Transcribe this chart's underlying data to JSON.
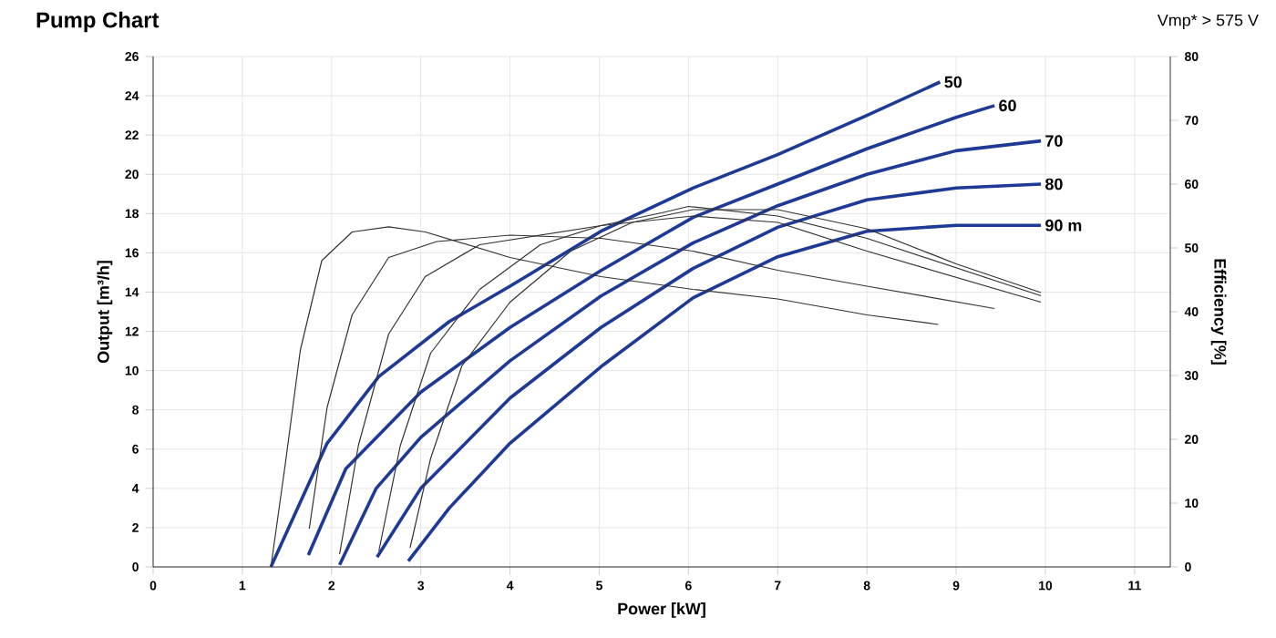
{
  "chart_data": {
    "type": "line",
    "title": "Pump Chart",
    "subtitle": "Vmp* > 575 V",
    "xlabel": "Power [kW]",
    "ylabel": "Output [m³/h]",
    "y2label": "Efficiency [%]",
    "xlim": [
      0,
      11.4
    ],
    "xticks": [
      0,
      1,
      2,
      3,
      4,
      5,
      6,
      7,
      8,
      9,
      10,
      11
    ],
    "ylim": [
      0,
      26
    ],
    "yticks": [
      0,
      2,
      4,
      6,
      8,
      10,
      12,
      14,
      16,
      18,
      20,
      22,
      24,
      26
    ],
    "y2lim": [
      0,
      80
    ],
    "y2ticks": [
      0,
      10,
      20,
      30,
      40,
      50,
      60,
      70,
      80
    ],
    "grid": true,
    "series": [
      {
        "name": "50",
        "color": "#1f3a96",
        "x": [
          1.32,
          1.95,
          2.53,
          3.32,
          4.0,
          5.02,
          6.05,
          7.0,
          8.0,
          8.82
        ],
        "values": [
          0,
          6.3,
          9.7,
          12.5,
          14.3,
          17.1,
          19.3,
          21.0,
          23.0,
          24.7
        ]
      },
      {
        "name": "60",
        "color": "#1f3a96",
        "x": [
          1.74,
          2.16,
          3.0,
          4.0,
          5.02,
          6.05,
          7.0,
          8.0,
          9.0,
          9.43
        ],
        "values": [
          0.6,
          5.0,
          8.9,
          12.2,
          15.1,
          17.8,
          19.5,
          21.3,
          22.9,
          23.5
        ]
      },
      {
        "name": "70",
        "color": "#1f3a96",
        "x": [
          2.09,
          2.5,
          3.0,
          4.0,
          5.02,
          6.05,
          7.0,
          8.0,
          9.0,
          9.95
        ],
        "values": [
          0.1,
          4.0,
          6.6,
          10.5,
          13.8,
          16.5,
          18.4,
          20.0,
          21.2,
          21.7
        ]
      },
      {
        "name": "80",
        "color": "#1f3a96",
        "x": [
          2.51,
          3.0,
          4.0,
          5.02,
          6.05,
          7.0,
          8.0,
          9.0,
          9.95
        ],
        "values": [
          0.5,
          4.0,
          8.6,
          12.2,
          15.2,
          17.3,
          18.7,
          19.3,
          19.5
        ]
      },
      {
        "name": "90 m",
        "color": "#1f3a96",
        "x": [
          2.86,
          3.32,
          4.0,
          5.02,
          6.05,
          7.0,
          8.0,
          9.0,
          9.95
        ],
        "values": [
          0.3,
          3.0,
          6.3,
          10.2,
          13.7,
          15.8,
          17.1,
          17.4,
          17.4
        ]
      },
      {
        "color": "#333333",
        "axis": "y2",
        "x": [
          1.32,
          1.48,
          1.65,
          1.89,
          2.23,
          2.64,
          3.05,
          4.0,
          5.02,
          6.05,
          7.0,
          8.0,
          8.8
        ],
        "values": [
          0,
          16,
          34,
          48,
          52.5,
          53.3,
          52.5,
          48.5,
          45.5,
          43.5,
          42,
          39.5,
          38
        ]
      },
      {
        "color": "#333333",
        "axis": "y2",
        "x": [
          1.75,
          1.95,
          2.23,
          2.64,
          3.18,
          4.0,
          5.02,
          6.05,
          7.0,
          8.0,
          9.43
        ],
        "values": [
          6,
          25,
          39.5,
          48.5,
          51,
          52,
          51.5,
          49.5,
          46.5,
          44,
          40.5
        ]
      },
      {
        "color": "#333333",
        "axis": "y2",
        "x": [
          2.09,
          2.3,
          2.64,
          3.05,
          3.66,
          4.34,
          5.02,
          6.05,
          7.0,
          8.0,
          9.95
        ],
        "values": [
          2,
          19,
          36.5,
          45.5,
          50.5,
          52,
          53.5,
          55,
          54,
          49.5,
          41.5
        ]
      },
      {
        "color": "#333333",
        "axis": "y2",
        "x": [
          2.53,
          2.77,
          3.11,
          3.66,
          4.34,
          5.02,
          5.7,
          6.0,
          7.0,
          8.0,
          9.95
        ],
        "values": [
          2.5,
          19,
          33.5,
          43.5,
          50.5,
          53.5,
          55.5,
          56.5,
          55,
          51.5,
          42.5
        ]
      },
      {
        "color": "#333333",
        "axis": "y2",
        "x": [
          2.88,
          3.11,
          3.46,
          4.0,
          4.68,
          5.37,
          6.05,
          7.0,
          8.0,
          9.0,
          9.95
        ],
        "values": [
          3,
          17,
          31.5,
          41.5,
          49.5,
          54,
          56,
          56,
          53,
          47.5,
          43
        ]
      }
    ]
  }
}
